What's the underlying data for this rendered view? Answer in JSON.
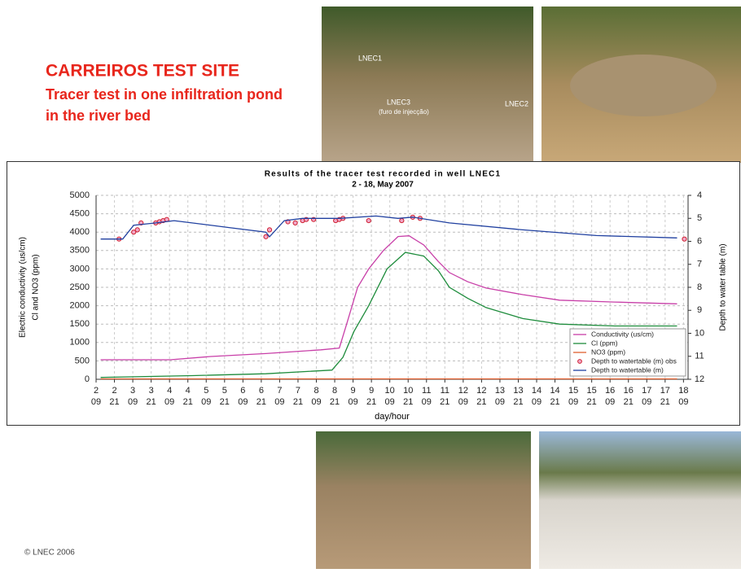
{
  "slide": {
    "heading": "CARREIROS TEST SITE",
    "subheading": [
      "Tracer test in one infiltration pond",
      "in the river bed"
    ],
    "copyright": "© LNEC 2006",
    "photo_labels": [
      "LNEC1",
      "LNEC3",
      "(furo de injecção)",
      "LNEC2"
    ]
  },
  "chart_data": {
    "type": "line",
    "title": "Results of the tracer test recorded in well LNEC1",
    "subtitle": "2 - 18, May 2007",
    "y_label": [
      "Electric conductivity (us/cm)",
      "Cl and NO3 (ppm)"
    ],
    "y2_label": "Depth to water table (m)",
    "x_label": "day/hour",
    "xlim": [
      2.375,
      18.5
    ],
    "ylim": [
      0,
      5000
    ],
    "y2lim": [
      12,
      4
    ],
    "grid": true,
    "legend": "lower-right",
    "yticks": [
      0,
      500,
      1000,
      1500,
      2000,
      2500,
      3000,
      3500,
      4000,
      4500,
      5000
    ],
    "y2ticks": [
      4,
      5,
      6,
      7,
      8,
      9,
      10,
      11,
      12
    ],
    "xticks": [
      {
        "value": 2.375,
        "label": "09"
      },
      {
        "value": 2.875,
        "label": "21"
      },
      {
        "value": 3.375,
        "label": "09"
      },
      {
        "value": 3.875,
        "label": "21"
      },
      {
        "value": 4.375,
        "label": "09"
      },
      {
        "value": 4.875,
        "label": "21"
      },
      {
        "value": 5.375,
        "label": "09"
      },
      {
        "value": 5.875,
        "label": "21"
      },
      {
        "value": 6.375,
        "label": "09"
      },
      {
        "value": 6.875,
        "label": "21"
      },
      {
        "value": 7.375,
        "label": "09"
      },
      {
        "value": 7.875,
        "label": "21"
      },
      {
        "value": 8.375,
        "label": "09"
      },
      {
        "value": 8.875,
        "label": "21"
      },
      {
        "value": 9.375,
        "label": "09"
      },
      {
        "value": 9.875,
        "label": "21"
      },
      {
        "value": 10.375,
        "label": "09"
      },
      {
        "value": 10.875,
        "label": "21"
      },
      {
        "value": 11.375,
        "label": "09"
      },
      {
        "value": 11.875,
        "label": "21"
      },
      {
        "value": 12.375,
        "label": "09"
      },
      {
        "value": 12.875,
        "label": "21"
      },
      {
        "value": 13.375,
        "label": "09"
      },
      {
        "value": 13.875,
        "label": "21"
      },
      {
        "value": 14.375,
        "label": "09"
      },
      {
        "value": 14.875,
        "label": "21"
      },
      {
        "value": 15.375,
        "label": "09"
      },
      {
        "value": 15.875,
        "label": "21"
      },
      {
        "value": 16.375,
        "label": "09"
      },
      {
        "value": 16.875,
        "label": "21"
      },
      {
        "value": 17.375,
        "label": "09"
      },
      {
        "value": 17.875,
        "label": "21"
      },
      {
        "value": 18.375,
        "label": "09"
      }
    ],
    "xtick_days": [
      "2",
      "2",
      "3",
      "3",
      "4",
      "4",
      "5",
      "5",
      "6",
      "6",
      "7",
      "7",
      "8",
      "8",
      "9",
      "9",
      "10",
      "10",
      "11",
      "11",
      "12",
      "12",
      "13",
      "13",
      "14",
      "14",
      "15",
      "15",
      "16",
      "16",
      "17",
      "17",
      "18"
    ],
    "series": [
      {
        "name": "Conductivity (us/cm)",
        "color": "#c83fa8",
        "kind": "line",
        "x": [
          2.5,
          4.4,
          5.5,
          7,
          8.5,
          9.0,
          9.2,
          9.5,
          9.8,
          10.2,
          10.6,
          10.9,
          11.3,
          11.7,
          12,
          12.5,
          13,
          14,
          15,
          16.5,
          18.2
        ],
        "values": [
          530,
          530,
          620,
          700,
          800,
          850,
          1500,
          2500,
          3000,
          3500,
          3880,
          3900,
          3650,
          3200,
          2900,
          2650,
          2480,
          2300,
          2150,
          2100,
          2050
        ]
      },
      {
        "name": "Cl (ppm)",
        "color": "#1e8c3c",
        "kind": "line",
        "x": [
          2.5,
          5,
          7,
          8.8,
          9.1,
          9.4,
          9.8,
          10.3,
          10.8,
          11.3,
          11.7,
          12,
          12.5,
          13,
          14,
          15,
          16.5,
          18.2
        ],
        "values": [
          50,
          100,
          150,
          250,
          600,
          1300,
          2000,
          3000,
          3450,
          3350,
          2950,
          2500,
          2200,
          1950,
          1650,
          1500,
          1450,
          1450
        ]
      },
      {
        "name": "NO3 (ppm)",
        "color": "#e06030",
        "kind": "line",
        "x": [
          2.5,
          18.2
        ],
        "values": [
          10,
          10
        ]
      },
      {
        "name": "Depth to watertable (m) obs",
        "color": "#d02030",
        "kind": "markers",
        "axis": "y2",
        "x": [
          3.0,
          3.4,
          3.5,
          3.6,
          4.0,
          4.1,
          4.2,
          4.3,
          7.0,
          7.1,
          7.6,
          7.8,
          8.0,
          8.1,
          8.3,
          8.9,
          9.0,
          9.1,
          9.8,
          10.7,
          11.0,
          11.2,
          18.4
        ],
        "values": [
          5.9,
          5.6,
          5.5,
          5.2,
          5.2,
          5.15,
          5.1,
          5.05,
          5.8,
          5.5,
          5.15,
          5.2,
          5.1,
          5.05,
          5.05,
          5.1,
          5.05,
          5.0,
          5.1,
          5.1,
          4.95,
          5.0,
          5.9
        ]
      },
      {
        "name": "Depth to watertable (m)",
        "color": "#2040a0",
        "kind": "line",
        "axis": "y2",
        "x": [
          2.5,
          3.1,
          3.4,
          4.0,
          4.5,
          6.0,
          7.0,
          7.1,
          7.5,
          8.0,
          9.0,
          10.0,
          10.6,
          11.0,
          12.0,
          14.0,
          16.0,
          18.2
        ],
        "values": [
          5.9,
          5.9,
          5.3,
          5.2,
          5.1,
          5.4,
          5.6,
          5.8,
          5.1,
          5.0,
          5.0,
          4.9,
          5.0,
          4.95,
          5.2,
          5.5,
          5.75,
          5.85
        ]
      }
    ]
  }
}
